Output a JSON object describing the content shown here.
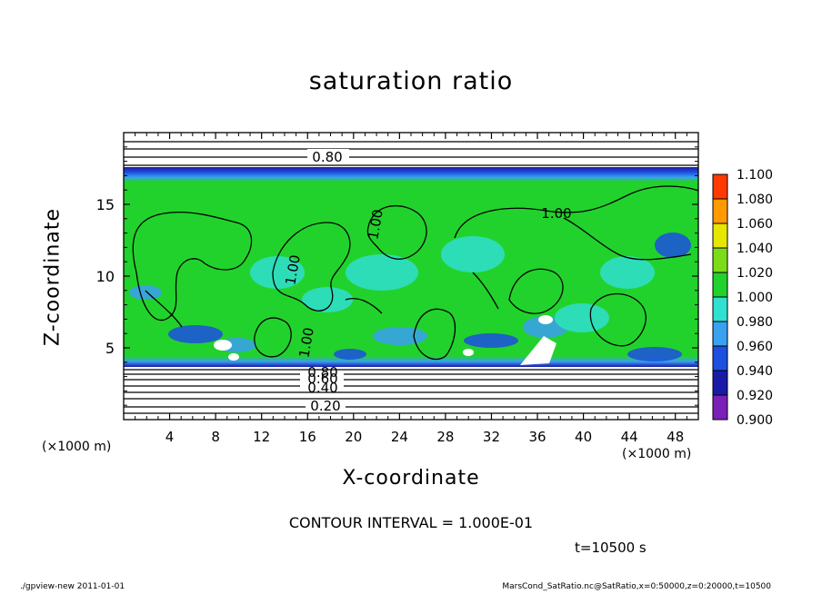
{
  "chart_data": {
    "type": "heatmap",
    "title": "saturation ratio",
    "xlabel": "X-coordinate",
    "ylabel": "Z-coordinate",
    "x_unit": "(×1000 m)",
    "z_unit": "(×1000 m)",
    "xlim": [
      0,
      50
    ],
    "ylim": [
      0,
      20
    ],
    "x_ticks": [
      4,
      8,
      12,
      16,
      20,
      24,
      28,
      32,
      36,
      40,
      44,
      48
    ],
    "y_ticks": [
      5,
      10,
      15
    ],
    "colorbar": {
      "levels": [
        0.9,
        0.92,
        0.94,
        0.96,
        0.98,
        1.0,
        1.02,
        1.04,
        1.06,
        1.08,
        1.1
      ],
      "labels": [
        "0.900",
        "0.920",
        "0.940",
        "0.960",
        "0.980",
        "1.000",
        "1.020",
        "1.040",
        "1.060",
        "1.080",
        "1.100"
      ],
      "colors": [
        "#7a1fb8",
        "#1a1aa8",
        "#1d4fe0",
        "#3aa0f0",
        "#30e0d0",
        "#22d22c",
        "#7ddc1a",
        "#e6e600",
        "#ff9a00",
        "#ff3a00",
        "#ff7a7a"
      ]
    },
    "contour_labels": [
      "0.80",
      "1.00",
      "1.00",
      "1.00",
      "1.00",
      "0.80",
      "0.60",
      "0.40",
      "0.20"
    ],
    "contour_interval": "CONTOUR INTERVAL = 1.000E-01",
    "time": "t=10500 s"
  },
  "footer": {
    "left": "./gpview-new   2011-01-01",
    "right": "MarsCond_SatRatio.nc@SatRatio,x=0:50000,z=0:20000,t=10500"
  }
}
